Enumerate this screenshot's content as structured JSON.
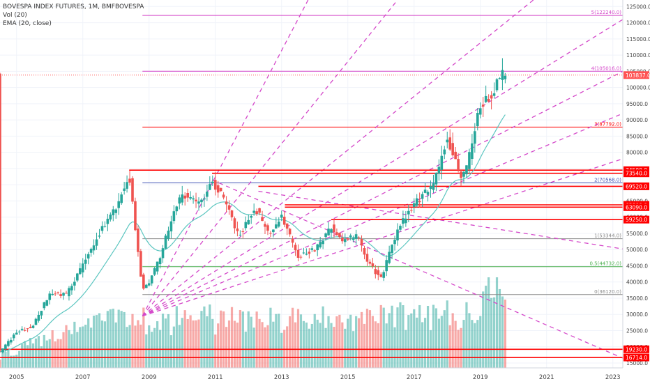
{
  "header": {
    "title": "BOVESPA INDEX FUTURES, 1M, BMFBOVESPA",
    "vol_label": "Vol (20)",
    "ema_label": "EMA (20, close)"
  },
  "colors": {
    "up": "#26a69a",
    "down": "#ef5350",
    "ema": "#5cc6c0",
    "fib": "#d447c9",
    "level": "#ff0000",
    "blue_level": "#3f51b5",
    "half_level": "#4caf50",
    "gray_level": "#888888",
    "price_line": "#ff5252"
  },
  "chart_data": {
    "type": "candlestick",
    "title": "BOVESPA INDEX FUTURES, 1M, BMFBOVESPA",
    "x_ticks": [
      "2005",
      "2007",
      "2009",
      "2011",
      "2013",
      "2015",
      "2017",
      "2019",
      "2021",
      "2023"
    ],
    "x_range": [
      2004.5,
      2023.3
    ],
    "y_range": [
      13500,
      127000
    ],
    "y_ticks": [
      "15000.0",
      "20000.0",
      "25000.0",
      "30000.0",
      "35000.0",
      "40000.0",
      "45000.0",
      "50000.0",
      "55000.0",
      "60000.0",
      "65000.0",
      "70000.0",
      "75000.0",
      "80000.0",
      "85000.0",
      "90000.0",
      "95000.0",
      "100000.0",
      "105000.0",
      "110000.0",
      "115000.0",
      "120000.0",
      "125000.0"
    ],
    "horizontal_levels": [
      {
        "value": 74500,
        "label": "74500.0"
      },
      {
        "value": 73540,
        "label": "73540.0"
      },
      {
        "value": 69520,
        "label": "69520.0"
      },
      {
        "value": 63800,
        "label": "63800.0"
      },
      {
        "value": 63090,
        "label": "63090.0"
      },
      {
        "value": 59250,
        "label": "59250.0"
      },
      {
        "value": 19230,
        "label": "19230.0"
      },
      {
        "value": 16714,
        "label": "16714.0"
      }
    ],
    "current_price": {
      "value": 103837,
      "label": "103837.0"
    },
    "fib_levels": [
      {
        "label": "5(122240.0)",
        "value": 122240,
        "style": "fib"
      },
      {
        "label": "4(105016.0)",
        "value": 105016,
        "style": "fib"
      },
      {
        "label": "3(87792.0)",
        "value": 87792,
        "style": "level"
      },
      {
        "label": "2(70568.0)",
        "value": 70568,
        "style": "blue_level"
      },
      {
        "label": "1(53344.0)",
        "value": 53344,
        "style": "gray_level"
      },
      {
        "label": "0.5(44732.0)",
        "value": 44732,
        "style": "half_level"
      },
      {
        "label": "0(36120.0)",
        "value": 36120,
        "style": "gray_level"
      }
    ],
    "fan_origin": {
      "x": 2008.8,
      "y": 29500
    },
    "fan_lines": [
      {
        "x": 2013.8,
        "y": 127000
      },
      {
        "x": 2016.5,
        "y": 127000
      },
      {
        "x": 2020.6,
        "y": 127000
      },
      {
        "x": 2023.3,
        "y": 121000
      },
      {
        "x": 2023.3,
        "y": 105000
      },
      {
        "x": 2023.3,
        "y": 92000
      },
      {
        "x": 2023.3,
        "y": 78000
      }
    ],
    "down_lines": [
      {
        "x1": 2010.9,
        "y1": 71500,
        "x2": 2023.3,
        "y2": 16500
      },
      {
        "x1": 2012.3,
        "y1": 68000,
        "x2": 2023.3,
        "y2": 50200
      }
    ],
    "candles_ohlc_sample_every_month": true,
    "volume_scale_max": 42000
  }
}
